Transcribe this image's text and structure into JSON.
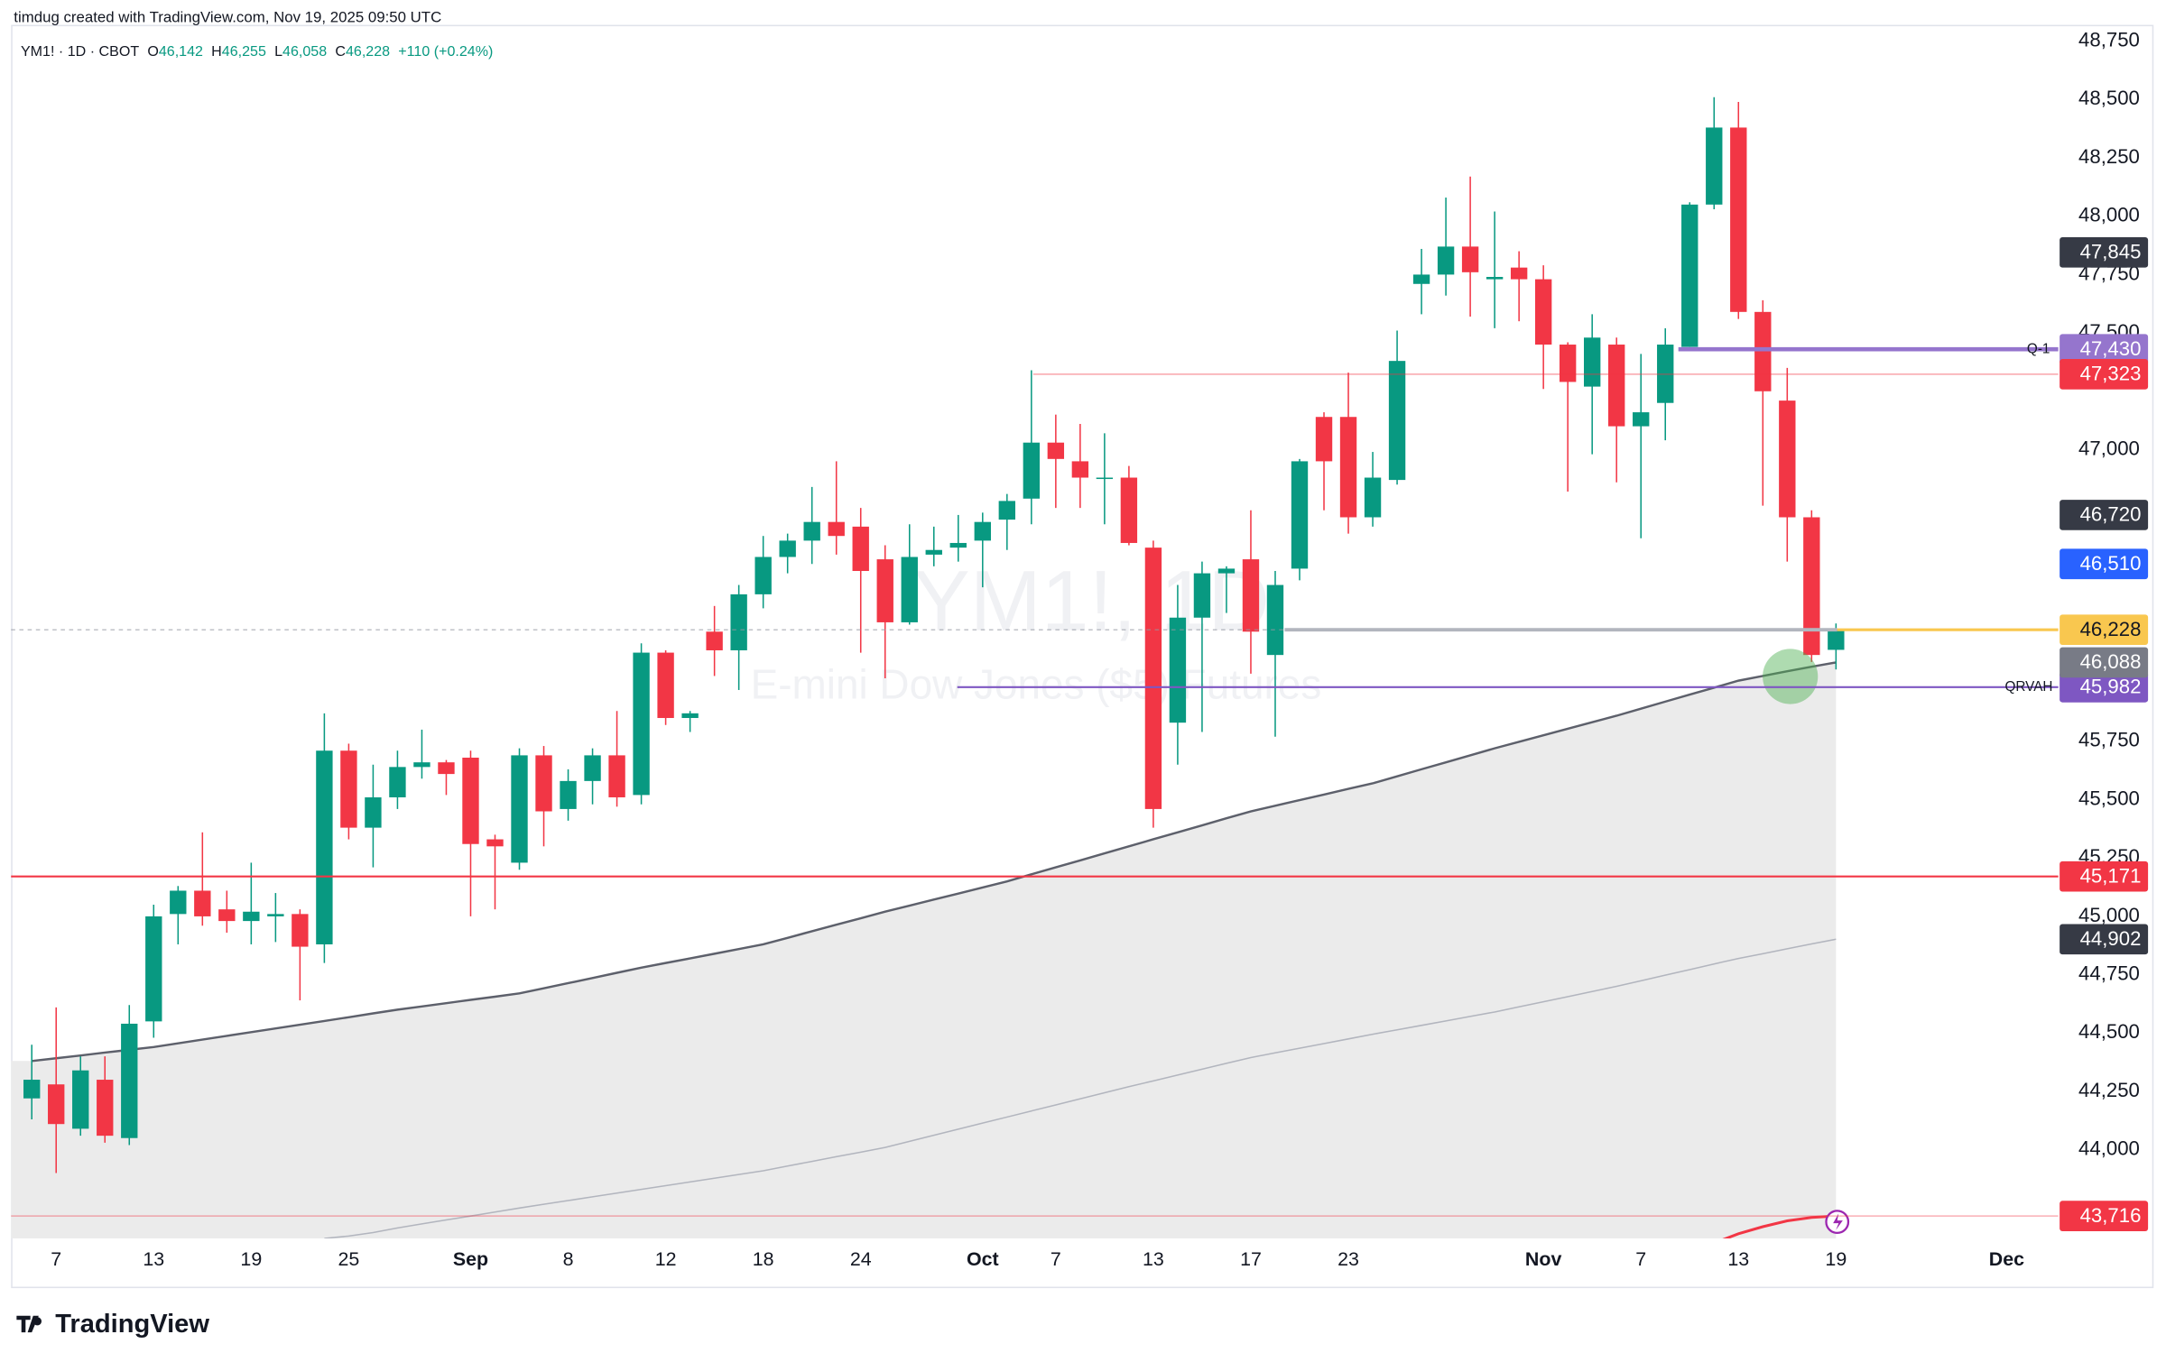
{
  "header": {
    "credit": "timdug created with TradingView.com, Nov 19, 2025 09:50 UTC"
  },
  "footer": {
    "logo": "TradingView"
  },
  "chart_data": {
    "type": "candlestick",
    "symbol": "YM1! · 1D · CBOT",
    "legend": [
      {
        "key": "O",
        "value": "46,142"
      },
      {
        "key": "H",
        "value": "46,255"
      },
      {
        "key": "L",
        "value": "46,058"
      },
      {
        "key": "C",
        "value": "46,228"
      }
    ],
    "change": "+110 (+0.24%)",
    "watermark": [
      "YM1!, 1D",
      "E-mini Dow Jones ($5) Futures"
    ],
    "categories": [
      null,
      "7",
      null,
      null,
      null,
      "13",
      null,
      null,
      null,
      "19",
      null,
      null,
      null,
      "25",
      null,
      null,
      null,
      null,
      "Sep",
      null,
      null,
      null,
      "8",
      null,
      null,
      null,
      "12",
      null,
      null,
      null,
      "18",
      null,
      null,
      null,
      "24",
      null,
      null,
      null,
      null,
      "Oct",
      null,
      null,
      "7",
      null,
      null,
      null,
      "13",
      null,
      null,
      null,
      "17",
      null,
      null,
      null,
      "23",
      null,
      null,
      null,
      null,
      null,
      null,
      null,
      "Nov",
      null,
      null,
      null,
      "7",
      null,
      null,
      null,
      "13",
      null,
      null,
      null,
      "19",
      null,
      null,
      null,
      null,
      null,
      null,
      "Dec"
    ],
    "open": [
      44220,
      44280,
      44090,
      44300,
      44050,
      44550,
      45010,
      45110,
      45030,
      44980,
      45000,
      45010,
      44880,
      45710,
      45380,
      45510,
      45640,
      45660,
      45680,
      45330,
      45230,
      45690,
      45460,
      45580,
      45690,
      45520,
      46130,
      45850,
      46220,
      46140,
      46380,
      46540,
      46610,
      46690,
      46670,
      46530,
      46260,
      46550,
      46580,
      46610,
      46700,
      46790,
      47030,
      46950,
      46880,
      46880,
      46580,
      45830,
      46280,
      46470,
      46530,
      46120,
      46490,
      47140,
      47140,
      46710,
      46870,
      47710,
      47750,
      47870,
      47730,
      47780,
      47730,
      47450,
      47270,
      47450,
      47100,
      47200,
      47440,
      48050,
      48380,
      47590,
      47210,
      46710,
      46142,
      null,
      null,
      null,
      null,
      null,
      null,
      null
    ],
    "high": [
      44450,
      44610,
      44400,
      44400,
      44620,
      45050,
      45130,
      45360,
      45110,
      45230,
      45100,
      45030,
      45870,
      45740,
      45650,
      45710,
      45800,
      45670,
      45710,
      45350,
      45720,
      45730,
      45630,
      45720,
      45880,
      46170,
      46140,
      45880,
      46330,
      46420,
      46630,
      46640,
      46840,
      46950,
      46750,
      46590,
      46680,
      46670,
      46720,
      46730,
      46810,
      47340,
      47150,
      47110,
      47070,
      46930,
      46610,
      46420,
      46520,
      46500,
      46740,
      46480,
      46960,
      47160,
      47330,
      46990,
      47510,
      47860,
      48080,
      48170,
      48020,
      47850,
      47790,
      47460,
      47580,
      47480,
      47410,
      47520,
      48060,
      48510,
      48490,
      47640,
      47350,
      46740,
      46255,
      null,
      null,
      null,
      null,
      null,
      null,
      null
    ],
    "low": [
      44130,
      43900,
      44060,
      44030,
      44020,
      44480,
      44880,
      44960,
      44930,
      44880,
      44890,
      44640,
      44800,
      45330,
      45210,
      45460,
      45590,
      45520,
      45000,
      45030,
      45200,
      45300,
      45410,
      45480,
      45470,
      45480,
      45820,
      45790,
      46030,
      45970,
      46320,
      46470,
      46510,
      46550,
      46130,
      46020,
      46250,
      46500,
      46520,
      46410,
      46570,
      46680,
      46750,
      46750,
      46680,
      46590,
      45380,
      45650,
      45790,
      46300,
      46040,
      45770,
      46440,
      46740,
      46640,
      46670,
      46850,
      47580,
      47660,
      47570,
      47520,
      47550,
      47260,
      46820,
      46980,
      46860,
      46620,
      47040,
      47440,
      48030,
      47560,
      46760,
      46520,
      46090,
      46058,
      null,
      null,
      null,
      null,
      null,
      null,
      null
    ],
    "close": [
      44300,
      44110,
      44340,
      44060,
      44540,
      45000,
      45110,
      45000,
      44980,
      45020,
      45010,
      44870,
      45710,
      45380,
      45510,
      45640,
      45660,
      45610,
      45310,
      45300,
      45690,
      45450,
      45580,
      45690,
      45510,
      46130,
      45850,
      45870,
      46140,
      46380,
      46540,
      46610,
      46690,
      46630,
      46480,
      46260,
      46540,
      46570,
      46600,
      46690,
      46780,
      47030,
      46960,
      46880,
      46880,
      46600,
      45460,
      46280,
      46470,
      46490,
      46220,
      46420,
      46950,
      46950,
      46710,
      46880,
      47380,
      47750,
      47870,
      47760,
      47740,
      47730,
      47450,
      47290,
      47480,
      47100,
      47160,
      47450,
      48050,
      48380,
      47590,
      47250,
      46710,
      46120,
      46228,
      null,
      null,
      null,
      null,
      null,
      null,
      null
    ],
    "up_color": "#089981",
    "down_color": "#f23645",
    "lines": [
      {
        "color": "#5d606b",
        "area": "#ebebeb",
        "values": [
          44380,
          44392,
          44404,
          44416,
          44428,
          44440,
          44456,
          44472,
          44488,
          44504,
          44520,
          44536,
          44552,
          44568,
          44584,
          44600,
          44614,
          44628,
          44642,
          44656,
          44670,
          44692,
          44714,
          44736,
          44758,
          44780,
          44800,
          44820,
          44840,
          44860,
          44880,
          44908,
          44936,
          44964,
          44992,
          45020,
          45046,
          45072,
          45098,
          45124,
          45150,
          45180,
          45210,
          45240,
          45270,
          45300,
          45330,
          45360,
          45390,
          45420,
          45450,
          45474,
          45498,
          45522,
          45546,
          45570,
          45600,
          45630,
          45660,
          45690,
          45720,
          45748,
          45776,
          45804,
          45832,
          45860,
          45890,
          45920,
          45950,
          45980,
          46010,
          46030,
          46050,
          46070,
          46088,
          null,
          null,
          null,
          null,
          null,
          null,
          null
        ]
      },
      {
        "color": "#b2b5be",
        "values": [
          null,
          null,
          null,
          null,
          null,
          null,
          null,
          null,
          null,
          null,
          null,
          null,
          43620,
          43630,
          43645,
          43665,
          43682,
          43699,
          43716,
          43733,
          43750,
          43766,
          43782,
          43798,
          43814,
          43830,
          43846,
          43862,
          43878,
          43894,
          43910,
          43930,
          43950,
          43970,
          43990,
          44010,
          44036,
          44062,
          44088,
          44114,
          44140,
          44166,
          44192,
          44218,
          44244,
          44270,
          44295,
          44320,
          44345,
          44370,
          44395,
          44415,
          44435,
          44455,
          44475,
          44495,
          44514,
          44533,
          44552,
          44571,
          44590,
          44612,
          44634,
          44656,
          44678,
          44700,
          44724,
          44748,
          44772,
          44796,
          44820,
          44840,
          44861,
          44882,
          44902,
          null,
          null,
          null,
          null,
          null,
          null,
          null
        ]
      },
      {
        "color": "#f23645",
        "values": [
          null,
          null,
          null,
          null,
          null,
          null,
          null,
          null,
          null,
          null,
          null,
          null,
          null,
          null,
          null,
          null,
          null,
          null,
          null,
          null,
          null,
          null,
          null,
          null,
          null,
          null,
          null,
          null,
          null,
          null,
          null,
          null,
          null,
          null,
          null,
          null,
          null,
          null,
          null,
          null,
          null,
          null,
          null,
          null,
          null,
          null,
          null,
          null,
          null,
          null,
          null,
          null,
          null,
          null,
          null,
          null,
          null,
          null,
          null,
          null,
          null,
          null,
          null,
          null,
          null,
          null,
          null,
          null,
          null,
          43600,
          43640,
          43670,
          43695,
          43710,
          43716,
          null,
          null,
          null,
          null,
          null,
          null,
          null
        ]
      }
    ],
    "price_labels": [
      {
        "value": 47845,
        "label": "47,845",
        "color": "#363a45"
      },
      {
        "value": 47430,
        "label": "47,430",
        "color": "#9575cd",
        "tag": "Q-1"
      },
      {
        "value": 47323,
        "label": "47,323",
        "color": "#f23645"
      },
      {
        "value": 46720,
        "label": "46,720",
        "color": "#363a45"
      },
      {
        "value": 46510,
        "label": "46,510",
        "color": "#2962ff"
      },
      {
        "value": 46228,
        "label": "46,228",
        "color": "#f9c74f"
      },
      {
        "value": 45982,
        "label": "45,982",
        "color": "#7e57c2",
        "tag": "QRVAH"
      },
      {
        "value": 46088,
        "label": "46,088",
        "color": "#787b86"
      },
      {
        "value": 45171,
        "label": "45,171",
        "color": "#f23645"
      },
      {
        "value": 44902,
        "label": "44,902",
        "color": "#363a45"
      },
      {
        "value": 43716,
        "label": "43,716",
        "color": "#f23645"
      }
    ],
    "ylim": [
      43620,
      48820
    ],
    "yticks": [
      {
        "value": 44000,
        "label": "44,000"
      },
      {
        "value": 44250,
        "label": "44,250"
      },
      {
        "value": 44500,
        "label": "44,500"
      },
      {
        "value": 44750,
        "label": "44,750"
      },
      {
        "value": 45000,
        "label": "45,000"
      },
      {
        "value": 45250,
        "label": "45,250"
      },
      {
        "value": 45500,
        "label": "45,500"
      },
      {
        "value": 45750,
        "label": "45,750"
      },
      {
        "value": 47000,
        "label": "47,000"
      },
      {
        "value": 47500,
        "label": "47,500"
      },
      {
        "value": 47750,
        "label": "47,750"
      },
      {
        "value": 48000,
        "label": "48,000"
      },
      {
        "value": 48250,
        "label": "48,250"
      },
      {
        "value": 48500,
        "label": "48,500"
      },
      {
        "value": 48750,
        "label": "48,750"
      }
    ]
  }
}
